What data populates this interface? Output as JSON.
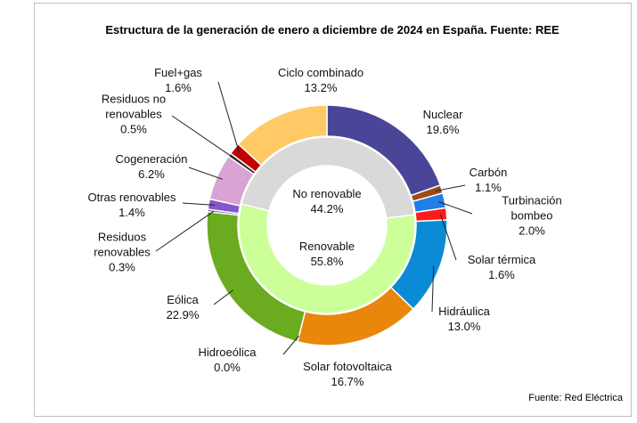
{
  "chart_data": {
    "type": "donut",
    "title": "Estructura de la generación de enero a diciembre de 2024 en España. Fuente: REE",
    "note": "Fuente: Red Eléctrica",
    "inner": {
      "categories": [
        "No renovable",
        "Renovable"
      ],
      "values": [
        44.2,
        55.8
      ],
      "value_labels": [
        "44.2%",
        "55.8%"
      ],
      "colors": [
        "#d9d9d9",
        "#ccff99"
      ]
    },
    "outer": {
      "categories": [
        "Nuclear",
        "Carbón",
        "Turbinación bombeo",
        "Solar térmica",
        "Hidráulica",
        "Solar fotovoltaica",
        "Hidroeólica",
        "Eólica",
        "Residuos renovables",
        "Otras renovables",
        "Cogeneración",
        "Residuos no renovables",
        "Fuel+gas",
        "Ciclo combinado"
      ],
      "values": [
        19.6,
        1.1,
        2.0,
        1.6,
        13.0,
        16.7,
        0.0,
        22.9,
        0.3,
        1.4,
        6.2,
        0.5,
        1.6,
        13.2
      ],
      "value_labels": [
        "19.6%",
        "1.1%",
        "2.0%",
        "1.6%",
        "13.0%",
        "16.7%",
        "0.0%",
        "22.9%",
        "0.3%",
        "1.4%",
        "6.2%",
        "0.5%",
        "1.6%",
        "13.2%"
      ],
      "colors": [
        "#4b4597",
        "#9c4a1a",
        "#1f7fe6",
        "#ff1a1a",
        "#0b8ad6",
        "#e8870c",
        "#5b9bd5",
        "#6bab1f",
        "#7030a0",
        "#8457c8",
        "#d9a3d3",
        "#2b2b2b",
        "#c00000",
        "#ffc966"
      ]
    }
  }
}
